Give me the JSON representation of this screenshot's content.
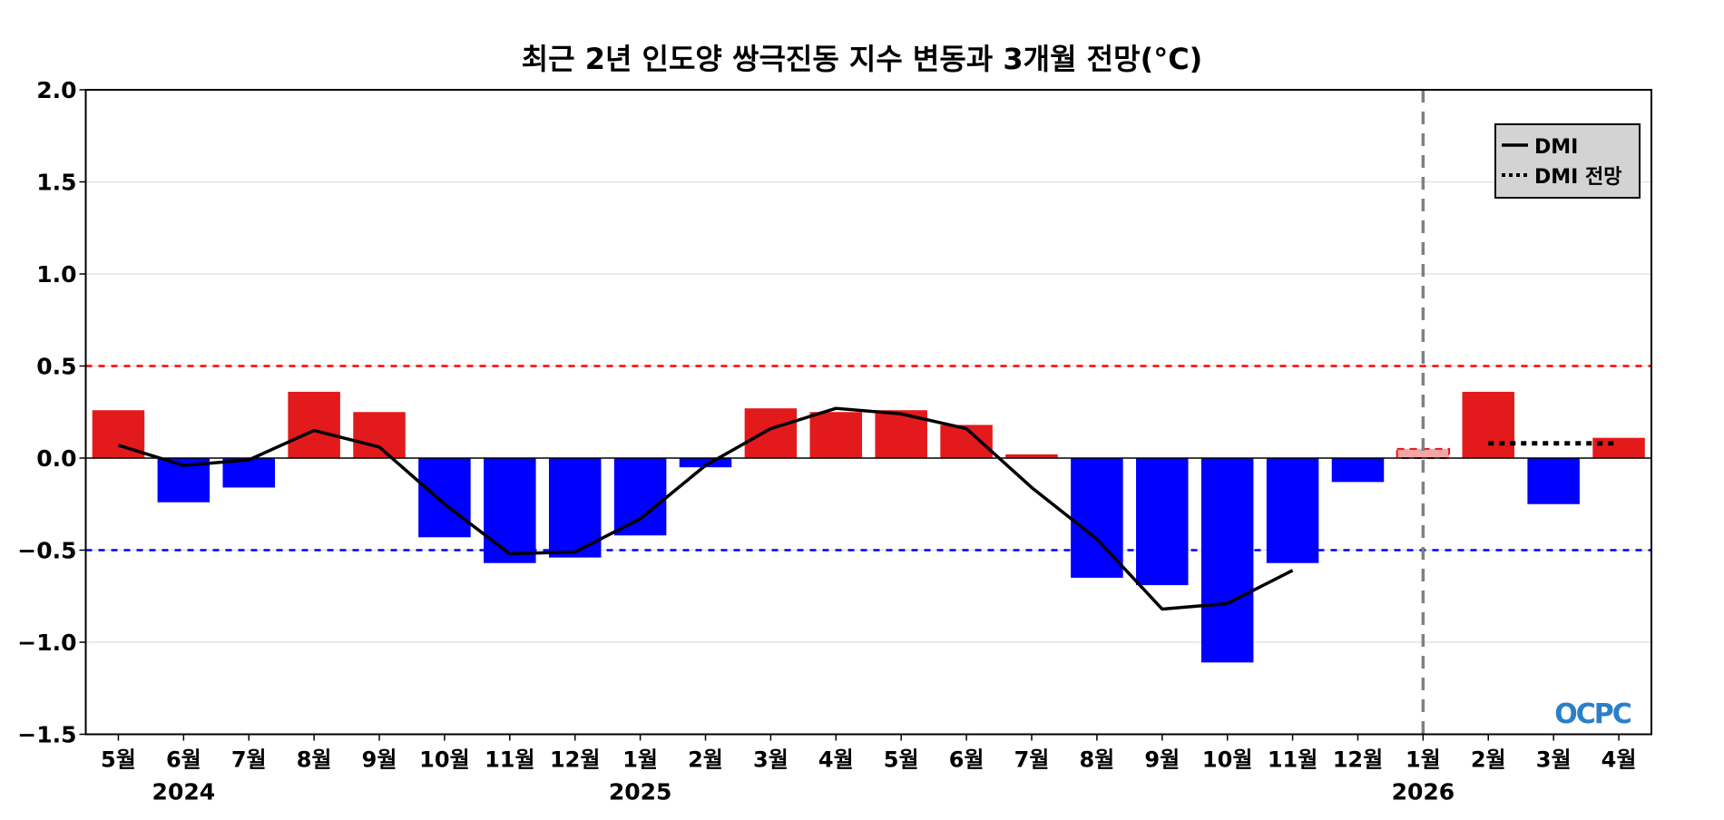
{
  "chart_data": {
    "type": "bar",
    "title": "최근 2년 인도양 쌍극진동 지수 변동과 3개월 전망(°C)",
    "xlabel": "",
    "ylabel": "",
    "ylim": [
      -1.5,
      2.0
    ],
    "yticks": [
      "2.0",
      "1.5",
      "1.0",
      "0.5",
      "0.0",
      "−0.5",
      "−1.0",
      "−1.5"
    ],
    "ytick_values": [
      2.0,
      1.5,
      1.0,
      0.5,
      0.0,
      -0.5,
      -1.0,
      -1.5
    ],
    "grid": true,
    "categories": [
      "5월",
      "6월",
      "7월",
      "8월",
      "9월",
      "10월",
      "11월",
      "12월",
      "1월",
      "2월",
      "3월",
      "4월",
      "5월",
      "6월",
      "7월",
      "8월",
      "9월",
      "10월",
      "11월",
      "12월",
      "1월",
      "2월",
      "3월",
      "4월"
    ],
    "years": [
      {
        "label": "2024",
        "category_index": 1
      },
      {
        "label": "2025",
        "category_index": 8
      },
      {
        "label": "2026",
        "category_index": 20
      }
    ],
    "bar_values": [
      0.26,
      -0.24,
      -0.16,
      0.36,
      0.25,
      -0.43,
      -0.57,
      -0.54,
      -0.42,
      -0.05,
      0.27,
      0.25,
      0.26,
      0.18,
      0.02,
      -0.65,
      -0.69,
      -1.11,
      -0.57,
      -0.13,
      0.05,
      0.36,
      -0.25,
      0.11
    ],
    "provisional_bar_index": 20,
    "series": [
      {
        "name": "DMI",
        "style": "solid",
        "values": [
          0.07,
          -0.04,
          -0.01,
          0.15,
          0.06,
          -0.25,
          -0.52,
          -0.51,
          -0.33,
          -0.04,
          0.16,
          0.27,
          0.24,
          0.16,
          -0.16,
          -0.44,
          -0.82,
          -0.79,
          -0.61,
          null,
          null,
          null,
          null,
          null
        ]
      },
      {
        "name": "DMI 전망",
        "style": "dotted",
        "values": [
          null,
          null,
          null,
          null,
          null,
          null,
          null,
          null,
          null,
          null,
          null,
          null,
          null,
          null,
          null,
          null,
          null,
          null,
          null,
          null,
          null,
          0.08,
          0.08,
          0.08
        ]
      }
    ],
    "thresholds": [
      {
        "value": 0.5,
        "color": "#ff0000"
      },
      {
        "value": -0.5,
        "color": "#0000ff"
      }
    ],
    "forecast_start_index": 20,
    "legend_placement": "top-right",
    "colors": {
      "positive": "#e31a1c",
      "negative": "#0000ff",
      "provisional": "#f4a6a6",
      "line": "#000000",
      "forecast_divider": "#808080",
      "grid": "#dddddd"
    },
    "logo": "OCPC"
  }
}
